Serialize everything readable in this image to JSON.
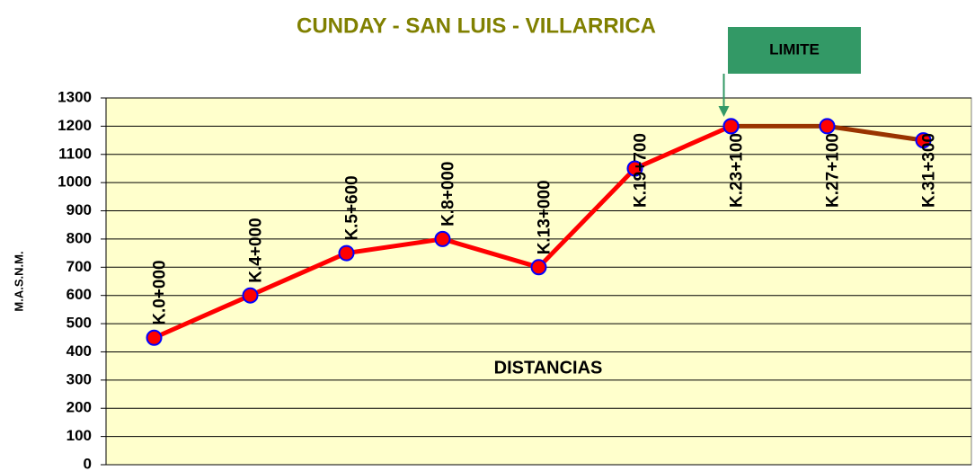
{
  "chart_data": {
    "type": "line",
    "title": "CUNDAY - SAN LUIS - VILLARRICA",
    "x_label": "DISTANCIAS",
    "y_label": "M.A.S.N.M.",
    "annotation": "LIMITE",
    "categories": [
      "K.0+000",
      "K.4+000",
      "K.5+600",
      "K.8+000",
      "K.13+000",
      "K.19+700",
      "K.23+100",
      "K.27+100",
      "K.31+300"
    ],
    "series": [
      {
        "color": "#ff0000",
        "values": [
          450,
          600,
          750,
          800,
          700,
          1050,
          1200,
          null,
          null
        ]
      },
      {
        "color": "#993300",
        "values": [
          null,
          null,
          null,
          null,
          null,
          null,
          1200,
          1200,
          1150
        ]
      }
    ],
    "ylim": [
      0,
      1300
    ],
    "yticks": [
      0,
      100,
      200,
      300,
      400,
      500,
      600,
      700,
      800,
      900,
      1000,
      1100,
      1200,
      1300
    ],
    "grid": true,
    "plot_background": "#ffffcc",
    "title_color": "#808000",
    "annotation_color": "#339966"
  }
}
